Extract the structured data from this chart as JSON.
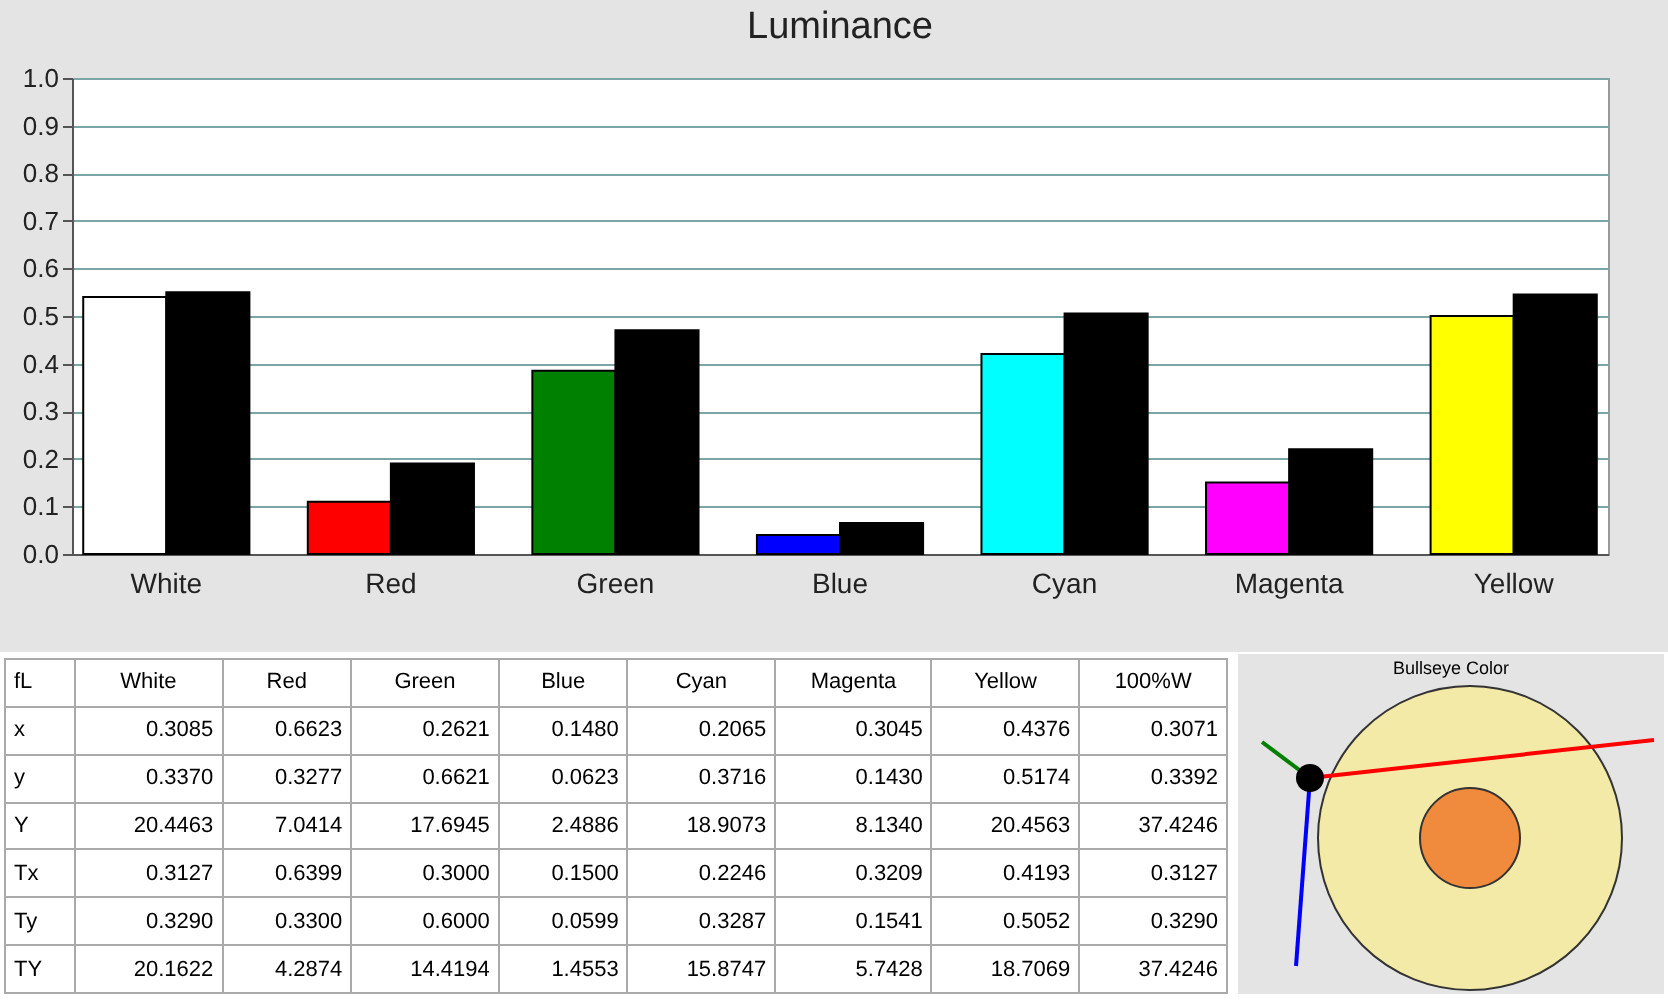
{
  "chart_data": [
    {
      "type": "bar",
      "title": "Luminance",
      "categories": [
        "White",
        "Red",
        "Green",
        "Blue",
        "Cyan",
        "Magenta",
        "Yellow"
      ],
      "series": [
        {
          "colors": [
            "#ffffff",
            "#ff0000",
            "#008000",
            "#0000ff",
            "#00ffff",
            "#ff00ff",
            "#ffff00"
          ],
          "values": [
            0.54,
            0.11,
            0.385,
            0.04,
            0.42,
            0.15,
            0.5
          ]
        },
        {
          "color": "#000000",
          "values": [
            0.55,
            0.19,
            0.47,
            0.065,
            0.505,
            0.22,
            0.545
          ]
        }
      ],
      "ylim": [
        0,
        1
      ],
      "yticks": [
        {
          "value": 0,
          "label": "0.0"
        },
        {
          "value": 0.1,
          "label": "0.1"
        },
        {
          "value": 0.2,
          "label": "0.2"
        },
        {
          "value": 0.3,
          "label": "0.3"
        },
        {
          "value": 0.4,
          "label": "0.4"
        },
        {
          "value": 0.5,
          "label": "0.5"
        },
        {
          "value": 0.6,
          "label": "0.6"
        },
        {
          "value": 0.7,
          "label": "0.7"
        },
        {
          "value": 0.8,
          "label": "0.8"
        },
        {
          "value": 0.9,
          "label": "0.9"
        },
        {
          "value": 1,
          "label": "1.0"
        }
      ],
      "grid": "y"
    },
    {
      "type": "heatmap",
      "data_labels": true,
      "ylabel": "fL",
      "categories": [
        "White",
        "Red",
        "Green",
        "Blue",
        "Cyan",
        "Magenta",
        "Yellow",
        "100%W"
      ],
      "y_categories": [
        "x",
        "y",
        "Y",
        "Tx",
        "Ty",
        "TY"
      ],
      "cells": [
        [
          0.3085,
          0.6623,
          0.2621,
          0.148,
          0.2065,
          0.3045,
          0.4376,
          0.3071
        ],
        [
          0.337,
          0.3277,
          0.6621,
          0.0623,
          0.3716,
          0.143,
          0.5174,
          0.3392
        ],
        [
          20.4463,
          7.0414,
          17.6945,
          2.4886,
          18.9073,
          8.134,
          20.4563,
          37.4246
        ],
        [
          0.3127,
          0.6399,
          0.3,
          0.15,
          0.2246,
          0.3209,
          0.4193,
          0.3127
        ],
        [
          0.329,
          0.33,
          0.6,
          0.0599,
          0.3287,
          0.1541,
          0.5052,
          0.329
        ],
        [
          20.1622,
          4.2874,
          14.4194,
          1.4553,
          15.8747,
          5.7428,
          18.7069,
          37.4246
        ]
      ],
      "cell_labels": [
        [
          "0.3085",
          "0.6623",
          "0.2621",
          "0.1480",
          "0.2065",
          "0.3045",
          "0.4376",
          "0.3071"
        ],
        [
          "0.3370",
          "0.3277",
          "0.6621",
          "0.0623",
          "0.3716",
          "0.1430",
          "0.5174",
          "0.3392"
        ],
        [
          "20.4463",
          "7.0414",
          "17.6945",
          "2.4886",
          "18.9073",
          "8.1340",
          "20.4563",
          "37.4246"
        ],
        [
          "0.3127",
          "0.6399",
          "0.3000",
          "0.1500",
          "0.2246",
          "0.3209",
          "0.4193",
          "0.3127"
        ],
        [
          "0.3290",
          "0.3300",
          "0.6000",
          "0.0599",
          "0.3287",
          "0.1541",
          "0.5052",
          "0.3290"
        ],
        [
          "20.1622",
          "4.2874",
          "14.4194",
          "1.4553",
          "15.8747",
          "5.7428",
          "18.7069",
          "37.4246"
        ]
      ]
    },
    {
      "type": "other",
      "title": "Bullseye Color"
    }
  ]
}
